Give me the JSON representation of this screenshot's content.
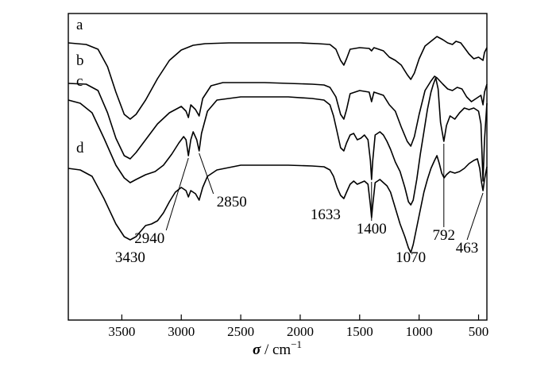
{
  "chart_data": {
    "type": "line",
    "title": "",
    "xlabel_symbol": "σ",
    "xlabel_unit": " / cm",
    "xlabel_exp": "−1",
    "ylabel": "",
    "xlim": [
      3950,
      430
    ],
    "x_reversed": true,
    "x_ticks": [
      3500,
      3000,
      2500,
      2000,
      1500,
      1000,
      500
    ],
    "x_tick_labels": [
      "3500",
      "3000",
      "2500",
      "2000",
      "1500",
      "1000",
      "500"
    ],
    "series": [
      {
        "name": "a",
        "points": [
          [
            3950,
            10
          ],
          [
            3800,
            12
          ],
          [
            3700,
            18
          ],
          [
            3620,
            40
          ],
          [
            3550,
            72
          ],
          [
            3480,
            100
          ],
          [
            3430,
            106
          ],
          [
            3380,
            100
          ],
          [
            3300,
            82
          ],
          [
            3200,
            55
          ],
          [
            3100,
            32
          ],
          [
            3000,
            19
          ],
          [
            2900,
            13
          ],
          [
            2800,
            11
          ],
          [
            2600,
            10
          ],
          [
            2400,
            10
          ],
          [
            2200,
            10
          ],
          [
            2000,
            10
          ],
          [
            1850,
            11
          ],
          [
            1750,
            12
          ],
          [
            1700,
            18
          ],
          [
            1660,
            32
          ],
          [
            1633,
            38
          ],
          [
            1610,
            30
          ],
          [
            1580,
            18
          ],
          [
            1500,
            16
          ],
          [
            1420,
            17
          ],
          [
            1400,
            20
          ],
          [
            1380,
            16
          ],
          [
            1300,
            20
          ],
          [
            1250,
            28
          ],
          [
            1200,
            32
          ],
          [
            1150,
            38
          ],
          [
            1100,
            50
          ],
          [
            1070,
            56
          ],
          [
            1040,
            48
          ],
          [
            1000,
            30
          ],
          [
            950,
            14
          ],
          [
            900,
            8
          ],
          [
            850,
            2
          ],
          [
            800,
            6
          ],
          [
            760,
            10
          ],
          [
            720,
            12
          ],
          [
            690,
            8
          ],
          [
            650,
            10
          ],
          [
            620,
            16
          ],
          [
            580,
            24
          ],
          [
            540,
            30
          ],
          [
            500,
            28
          ],
          [
            463,
            32
          ],
          [
            450,
            22
          ],
          [
            430,
            16
          ]
        ]
      },
      {
        "name": "b",
        "points": [
          [
            3950,
            13
          ],
          [
            3800,
            14
          ],
          [
            3700,
            22
          ],
          [
            3620,
            50
          ],
          [
            3550,
            82
          ],
          [
            3480,
            104
          ],
          [
            3430,
            108
          ],
          [
            3380,
            100
          ],
          [
            3300,
            84
          ],
          [
            3200,
            64
          ],
          [
            3100,
            50
          ],
          [
            3000,
            42
          ],
          [
            2960,
            48
          ],
          [
            2940,
            56
          ],
          [
            2920,
            40
          ],
          [
            2880,
            46
          ],
          [
            2850,
            54
          ],
          [
            2820,
            32
          ],
          [
            2750,
            16
          ],
          [
            2650,
            12
          ],
          [
            2500,
            12
          ],
          [
            2300,
            12
          ],
          [
            2100,
            13
          ],
          [
            1900,
            14
          ],
          [
            1800,
            15
          ],
          [
            1750,
            18
          ],
          [
            1700,
            30
          ],
          [
            1660,
            52
          ],
          [
            1633,
            58
          ],
          [
            1610,
            46
          ],
          [
            1580,
            26
          ],
          [
            1500,
            22
          ],
          [
            1420,
            24
          ],
          [
            1400,
            36
          ],
          [
            1380,
            24
          ],
          [
            1300,
            28
          ],
          [
            1250,
            40
          ],
          [
            1200,
            48
          ],
          [
            1150,
            68
          ],
          [
            1100,
            86
          ],
          [
            1070,
            92
          ],
          [
            1040,
            80
          ],
          [
            1000,
            52
          ],
          [
            950,
            22
          ],
          [
            900,
            10
          ],
          [
            870,
            4
          ],
          [
            850,
            6
          ],
          [
            800,
            14
          ],
          [
            760,
            20
          ],
          [
            720,
            22
          ],
          [
            680,
            18
          ],
          [
            640,
            20
          ],
          [
            600,
            30
          ],
          [
            560,
            36
          ],
          [
            520,
            32
          ],
          [
            480,
            28
          ],
          [
            463,
            40
          ],
          [
            450,
            24
          ],
          [
            430,
            14
          ]
        ]
      },
      {
        "name": "c",
        "points": [
          [
            3950,
            10
          ],
          [
            3850,
            14
          ],
          [
            3750,
            26
          ],
          [
            3650,
            58
          ],
          [
            3550,
            92
          ],
          [
            3480,
            108
          ],
          [
            3430,
            114
          ],
          [
            3380,
            110
          ],
          [
            3300,
            104
          ],
          [
            3220,
            100
          ],
          [
            3150,
            92
          ],
          [
            3080,
            78
          ],
          [
            3020,
            64
          ],
          [
            2980,
            56
          ],
          [
            2960,
            60
          ],
          [
            2940,
            80
          ],
          [
            2920,
            60
          ],
          [
            2900,
            50
          ],
          [
            2870,
            60
          ],
          [
            2850,
            74
          ],
          [
            2830,
            52
          ],
          [
            2780,
            24
          ],
          [
            2700,
            10
          ],
          [
            2500,
            6
          ],
          [
            2300,
            6
          ],
          [
            2100,
            6
          ],
          [
            1900,
            8
          ],
          [
            1800,
            10
          ],
          [
            1750,
            16
          ],
          [
            1720,
            30
          ],
          [
            1690,
            50
          ],
          [
            1660,
            70
          ],
          [
            1633,
            74
          ],
          [
            1610,
            64
          ],
          [
            1580,
            54
          ],
          [
            1550,
            52
          ],
          [
            1520,
            60
          ],
          [
            1490,
            58
          ],
          [
            1460,
            54
          ],
          [
            1430,
            60
          ],
          [
            1410,
            86
          ],
          [
            1400,
            110
          ],
          [
            1390,
            86
          ],
          [
            1370,
            54
          ],
          [
            1330,
            50
          ],
          [
            1300,
            54
          ],
          [
            1270,
            62
          ],
          [
            1240,
            72
          ],
          [
            1200,
            88
          ],
          [
            1160,
            100
          ],
          [
            1120,
            120
          ],
          [
            1090,
            138
          ],
          [
            1070,
            142
          ],
          [
            1050,
            136
          ],
          [
            1020,
            110
          ],
          [
            990,
            78
          ],
          [
            960,
            50
          ],
          [
            930,
            22
          ],
          [
            900,
            0
          ],
          [
            880,
            -10
          ],
          [
            860,
            -18
          ],
          [
            840,
            -4
          ],
          [
            820,
            38
          ],
          [
            792,
            62
          ],
          [
            770,
            42
          ],
          [
            740,
            30
          ],
          [
            700,
            34
          ],
          [
            660,
            26
          ],
          [
            620,
            20
          ],
          [
            580,
            22
          ],
          [
            540,
            20
          ],
          [
            500,
            24
          ],
          [
            480,
            40
          ],
          [
            463,
            112
          ],
          [
            450,
            60
          ],
          [
            430,
            14
          ]
        ]
      },
      {
        "name": "d",
        "points": [
          [
            3950,
            10
          ],
          [
            3850,
            12
          ],
          [
            3750,
            20
          ],
          [
            3650,
            48
          ],
          [
            3550,
            80
          ],
          [
            3480,
            96
          ],
          [
            3430,
            100
          ],
          [
            3380,
            96
          ],
          [
            3300,
            82
          ],
          [
            3250,
            80
          ],
          [
            3200,
            76
          ],
          [
            3150,
            66
          ],
          [
            3100,
            52
          ],
          [
            3050,
            40
          ],
          [
            3000,
            34
          ],
          [
            2960,
            38
          ],
          [
            2940,
            46
          ],
          [
            2920,
            38
          ],
          [
            2880,
            42
          ],
          [
            2850,
            50
          ],
          [
            2820,
            34
          ],
          [
            2780,
            20
          ],
          [
            2700,
            12
          ],
          [
            2500,
            6
          ],
          [
            2300,
            6
          ],
          [
            2100,
            6
          ],
          [
            1900,
            7
          ],
          [
            1800,
            8
          ],
          [
            1750,
            12
          ],
          [
            1720,
            20
          ],
          [
            1690,
            34
          ],
          [
            1660,
            44
          ],
          [
            1633,
            48
          ],
          [
            1610,
            40
          ],
          [
            1580,
            30
          ],
          [
            1550,
            26
          ],
          [
            1520,
            30
          ],
          [
            1490,
            28
          ],
          [
            1460,
            26
          ],
          [
            1430,
            30
          ],
          [
            1410,
            56
          ],
          [
            1400,
            72
          ],
          [
            1390,
            56
          ],
          [
            1370,
            28
          ],
          [
            1330,
            24
          ],
          [
            1300,
            28
          ],
          [
            1270,
            32
          ],
          [
            1240,
            40
          ],
          [
            1200,
            60
          ],
          [
            1160,
            80
          ],
          [
            1120,
            96
          ],
          [
            1090,
            110
          ],
          [
            1070,
            116
          ],
          [
            1050,
            106
          ],
          [
            1020,
            84
          ],
          [
            990,
            62
          ],
          [
            960,
            40
          ],
          [
            930,
            24
          ],
          [
            900,
            10
          ],
          [
            870,
            0
          ],
          [
            850,
            -6
          ],
          [
            830,
            4
          ],
          [
            810,
            16
          ],
          [
            790,
            22
          ],
          [
            770,
            18
          ],
          [
            740,
            14
          ],
          [
            700,
            16
          ],
          [
            660,
            14
          ],
          [
            620,
            10
          ],
          [
            580,
            4
          ],
          [
            540,
            0
          ],
          [
            510,
            -2
          ],
          [
            490,
            10
          ],
          [
            475,
            28
          ],
          [
            463,
            38
          ],
          [
            450,
            24
          ],
          [
            430,
            8
          ]
        ]
      }
    ],
    "annotations": [
      {
        "text": "3430",
        "x": 3430
      },
      {
        "text": "2940",
        "x": 2940
      },
      {
        "text": "2850",
        "x": 2850
      },
      {
        "text": "1633",
        "x": 1633
      },
      {
        "text": "1400",
        "x": 1400
      },
      {
        "text": "1070",
        "x": 1070
      },
      {
        "text": "792",
        "x": 792
      },
      {
        "text": "463",
        "x": 463
      }
    ]
  }
}
